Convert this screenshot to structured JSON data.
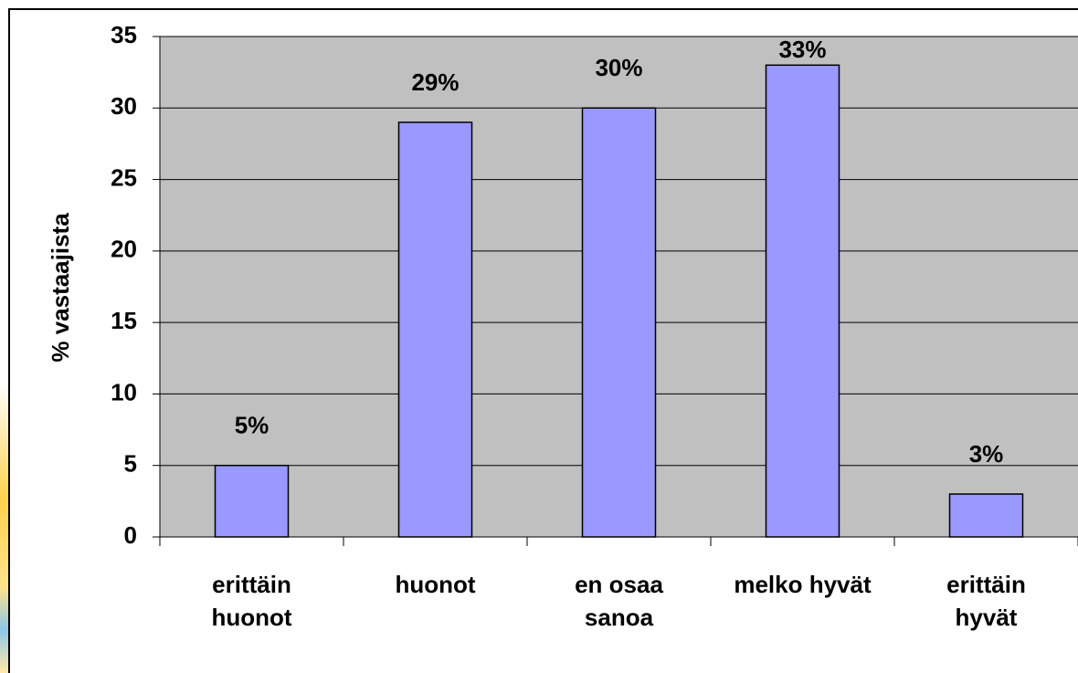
{
  "chart_data": {
    "type": "bar",
    "y_label": "% vastaajista",
    "categories": [
      "erittäin huonot",
      "huonot",
      "en osaa sanoa",
      "melko hyvät",
      "erittäin hyvät"
    ],
    "values": [
      5,
      29,
      30,
      33,
      3
    ],
    "value_labels": [
      "5%",
      "29%",
      "30%",
      "33%",
      "3%"
    ],
    "color": "#9999ff",
    "ylim": [
      0,
      35
    ],
    "yticks": [
      0,
      5,
      10,
      15,
      20,
      25,
      30,
      35
    ],
    "grid": true
  }
}
